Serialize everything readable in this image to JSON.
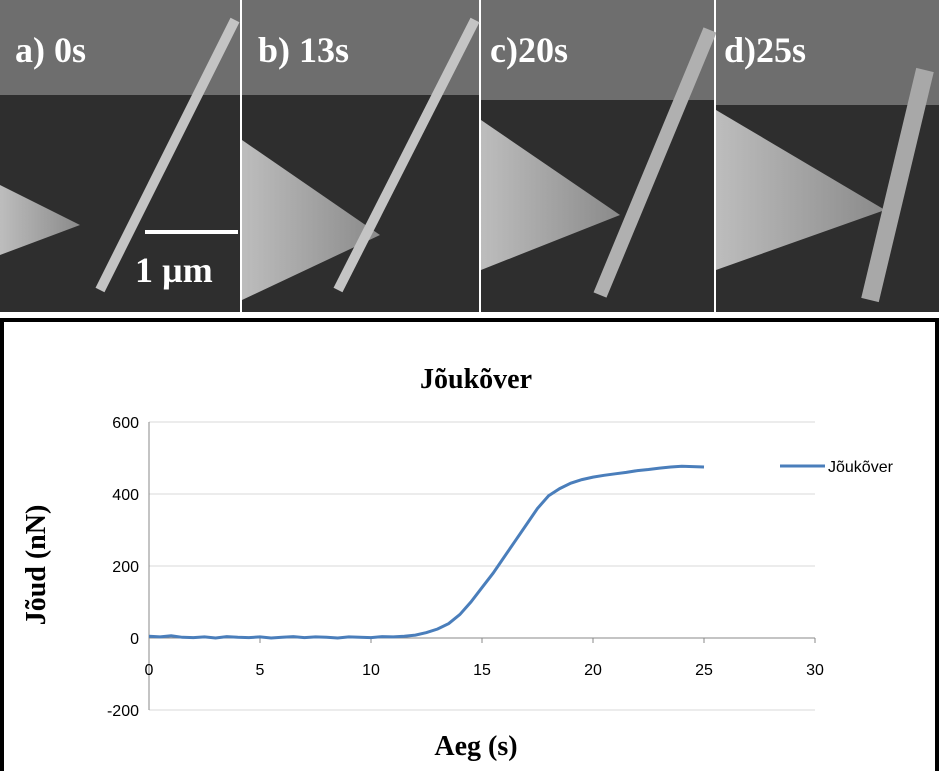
{
  "panels": {
    "labels": [
      "a) 0s",
      "b) 13s",
      "c)20s",
      "d)25s"
    ],
    "scale_bar": "1 µm"
  },
  "chart_data": {
    "type": "line",
    "title": "Jõukõver",
    "x_label": "Aeg (s)",
    "y_label": "Jõud (nN)",
    "x": [
      0,
      0.5,
      1,
      1.5,
      2,
      2.5,
      3,
      3.5,
      4,
      4.5,
      5,
      5.5,
      6,
      6.5,
      7,
      7.5,
      8,
      8.5,
      9,
      9.5,
      10,
      10.5,
      11,
      11.5,
      12,
      12.5,
      13,
      13.5,
      14,
      14.5,
      15,
      15.5,
      16,
      16.5,
      17,
      17.5,
      18,
      18.5,
      19,
      19.5,
      20,
      20.5,
      21,
      21.5,
      22,
      22.5,
      23,
      23.5,
      24,
      24.5,
      25
    ],
    "series": [
      {
        "name": "Jõukõver",
        "color": "#4a7ebb",
        "values": [
          5,
          3,
          6,
          2,
          1,
          3,
          0,
          4,
          2,
          1,
          3,
          0,
          2,
          4,
          1,
          3,
          2,
          0,
          3,
          2,
          1,
          4,
          3,
          5,
          8,
          15,
          25,
          40,
          65,
          100,
          140,
          180,
          225,
          270,
          315,
          360,
          395,
          415,
          430,
          440,
          447,
          452,
          456,
          460,
          465,
          468,
          472,
          475,
          477,
          476,
          475
        ]
      }
    ],
    "xlim": [
      0,
      30
    ],
    "xticks": [
      0,
      5,
      10,
      15,
      20,
      25,
      30
    ],
    "ylim": [
      -200,
      600
    ],
    "yticks": [
      -200,
      0,
      200,
      400,
      600
    ],
    "grid": true,
    "legend": "right"
  }
}
